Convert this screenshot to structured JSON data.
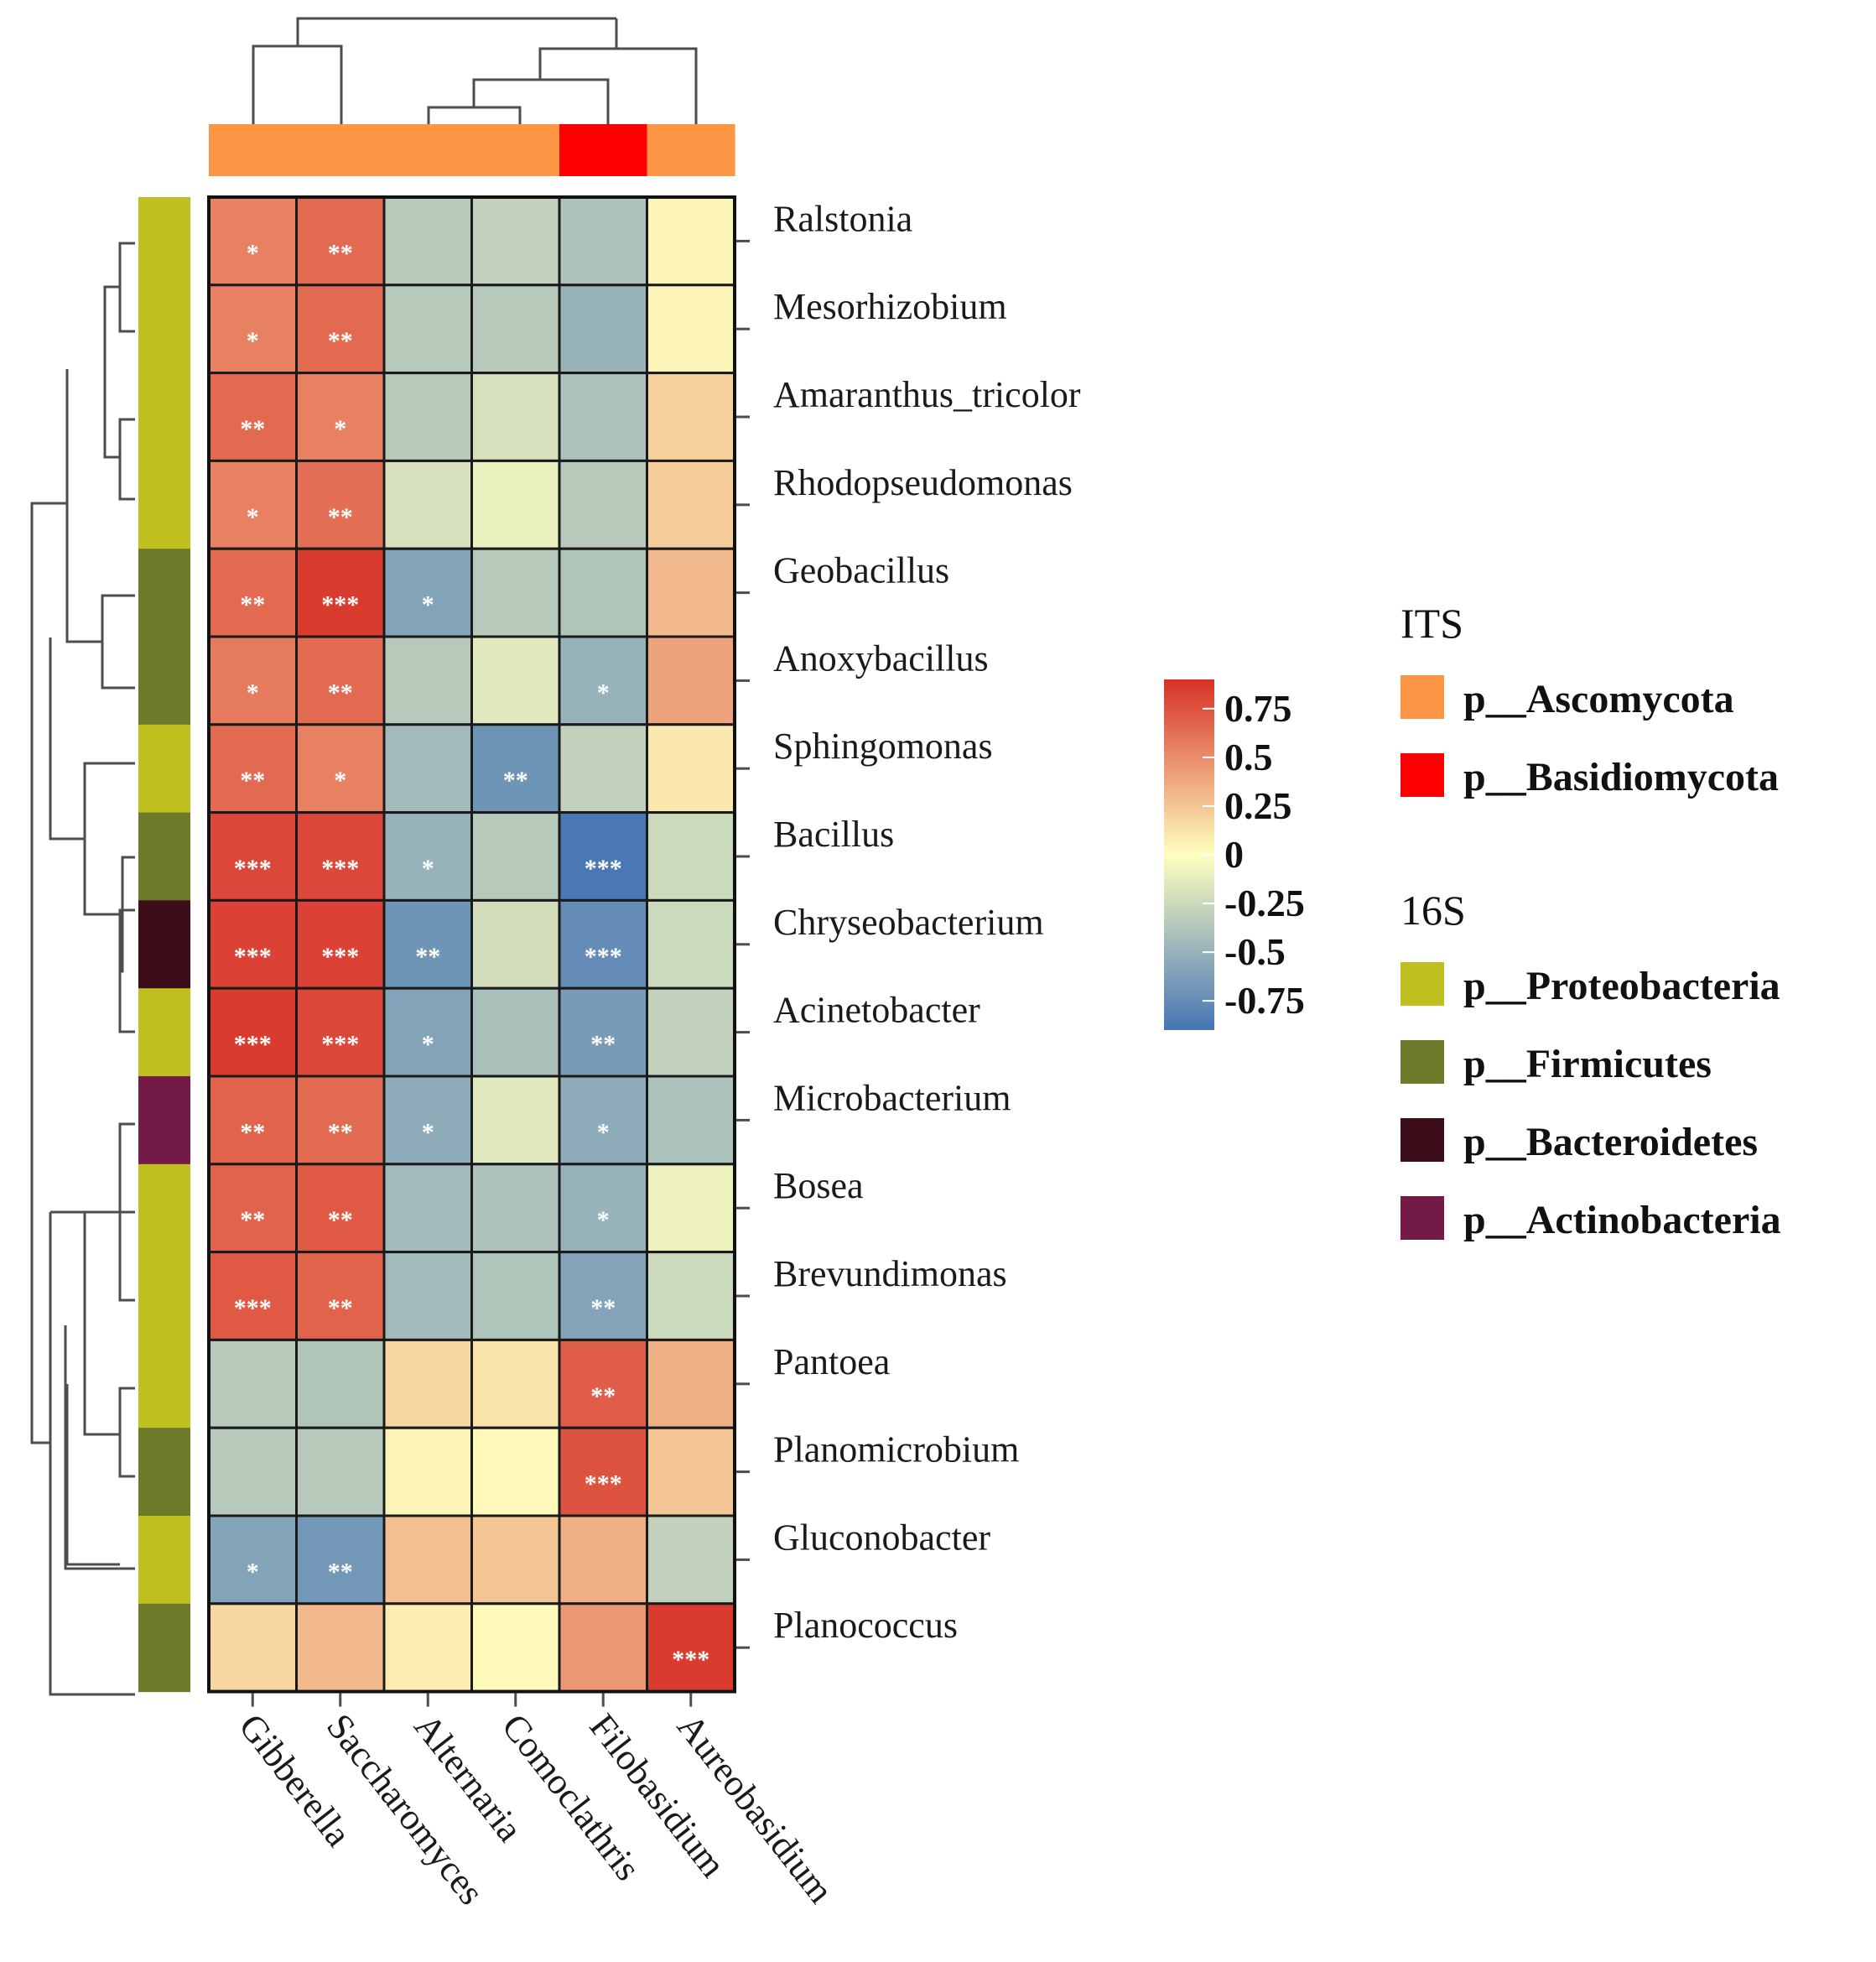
{
  "chart_data": {
    "type": "heatmap",
    "title": "",
    "xlabel": "",
    "ylabel": "",
    "columns": [
      "Gibberella",
      "Saccharomyces",
      "Alternaria",
      "Comoclathris",
      "Filobasidium",
      "Aureobasidium"
    ],
    "column_phylum": [
      "p__Ascomycota",
      "p__Ascomycota",
      "p__Ascomycota",
      "p__Ascomycota",
      "p__Basidiomycota",
      "p__Ascomycota"
    ],
    "rows": [
      "Ralstonia",
      "Mesorhizobium",
      "Amaranthus_tricolor",
      "Rhodopseudomonas",
      "Geobacillus",
      "Anoxybacillus",
      "Sphingomonas",
      "Bacillus",
      "Chryseobacterium",
      "Acinetobacter",
      "Microbacterium",
      "Bosea",
      "Brevundimonas",
      "Pantoea",
      "Planomicrobium",
      "Gluconobacter",
      "Planococcus"
    ],
    "row_phylum": [
      "p__Proteobacteria",
      "p__Proteobacteria",
      "p__Proteobacteria",
      "p__Proteobacteria",
      "p__Firmicutes",
      "p__Firmicutes",
      "p__Proteobacteria",
      "p__Firmicutes",
      "p__Bacteroidetes",
      "p__Proteobacteria",
      "p__Actinobacteria",
      "p__Proteobacteria",
      "p__Proteobacteria",
      "p__Proteobacteria",
      "p__Firmicutes",
      "p__Proteobacteria",
      "p__Firmicutes"
    ],
    "values": [
      [
        0.55,
        0.65,
        -0.35,
        -0.3,
        -0.4,
        0.05
      ],
      [
        0.55,
        0.65,
        -0.35,
        -0.35,
        -0.5,
        0.05
      ],
      [
        0.65,
        0.55,
        -0.35,
        -0.2,
        -0.4,
        0.2
      ],
      [
        0.55,
        0.62,
        -0.2,
        -0.1,
        -0.35,
        0.22
      ],
      [
        0.65,
        0.85,
        -0.6,
        -0.35,
        -0.38,
        0.3
      ],
      [
        0.58,
        0.65,
        -0.35,
        -0.15,
        -0.5,
        0.4
      ],
      [
        0.65,
        0.55,
        -0.45,
        -0.7,
        -0.3,
        0.1
      ],
      [
        0.8,
        0.8,
        -0.5,
        -0.35,
        -0.88,
        -0.25
      ],
      [
        0.82,
        0.82,
        -0.7,
        -0.22,
        -0.75,
        -0.25
      ],
      [
        0.85,
        0.8,
        -0.6,
        -0.42,
        -0.65,
        -0.3
      ],
      [
        0.68,
        0.65,
        -0.55,
        -0.15,
        -0.55,
        -0.4
      ],
      [
        0.68,
        0.72,
        -0.45,
        -0.4,
        -0.5,
        -0.08
      ],
      [
        0.72,
        0.68,
        -0.45,
        -0.38,
        -0.6,
        -0.25
      ],
      [
        -0.35,
        -0.38,
        0.18,
        0.12,
        0.7,
        0.35
      ],
      [
        -0.35,
        -0.35,
        0.05,
        0.03,
        0.75,
        0.25
      ],
      [
        -0.6,
        -0.68,
        0.28,
        0.25,
        0.35,
        -0.3
      ],
      [
        0.18,
        0.3,
        0.08,
        0.02,
        0.45,
        0.85
      ]
    ],
    "significance": [
      [
        "*",
        "**",
        "",
        "",
        "",
        ""
      ],
      [
        "*",
        "**",
        "",
        "",
        "",
        ""
      ],
      [
        "**",
        "*",
        "",
        "",
        "",
        ""
      ],
      [
        "*",
        "**",
        "",
        "",
        "",
        ""
      ],
      [
        "**",
        "***",
        "*",
        "",
        "",
        ""
      ],
      [
        "*",
        "**",
        "",
        "",
        "*",
        ""
      ],
      [
        "**",
        "*",
        "",
        "**",
        "",
        ""
      ],
      [
        "***",
        "***",
        "*",
        "",
        "***",
        ""
      ],
      [
        "***",
        "***",
        "**",
        "",
        "***",
        ""
      ],
      [
        "***",
        "***",
        "*",
        "",
        "**",
        ""
      ],
      [
        "**",
        "**",
        "*",
        "",
        "*",
        ""
      ],
      [
        "**",
        "**",
        "",
        "",
        "*",
        ""
      ],
      [
        "***",
        "**",
        "",
        "",
        "**",
        ""
      ],
      [
        "",
        "",
        "",
        "",
        "**",
        ""
      ],
      [
        "",
        "",
        "",
        "",
        "***",
        ""
      ],
      [
        "*",
        "**",
        "",
        "",
        "",
        ""
      ],
      [
        "",
        "",
        "",
        "",
        "",
        "***"
      ]
    ],
    "color_scale": {
      "ticks": [
        "0.75",
        "0.5",
        "0.25",
        "0",
        "-0.25",
        "-0.5",
        "-0.75"
      ],
      "tick_values": [
        0.75,
        0.5,
        0.25,
        0,
        -0.25,
        -0.5,
        -0.75
      ],
      "range": [
        -0.9,
        0.9
      ],
      "low_color": "#4575b4",
      "mid_color": "#ffffbf",
      "high_color": "#d73027"
    },
    "legend": {
      "groups": [
        {
          "title": "ITS",
          "items": [
            {
              "label": "p__Ascomycota",
              "color": "#fd9644"
            },
            {
              "label": "p__Basidiomycota",
              "color": "#ff0000"
            }
          ]
        },
        {
          "title": "16S",
          "items": [
            {
              "label": "p__Proteobacteria",
              "color": "#bfbf1f"
            },
            {
              "label": "p__Firmicutes",
              "color": "#6b7b2a"
            },
            {
              "label": "p__Bacteroidetes",
              "color": "#3d0d19"
            },
            {
              "label": "p__Actinobacteria",
              "color": "#731a46"
            }
          ]
        }
      ],
      "position": "right"
    }
  }
}
